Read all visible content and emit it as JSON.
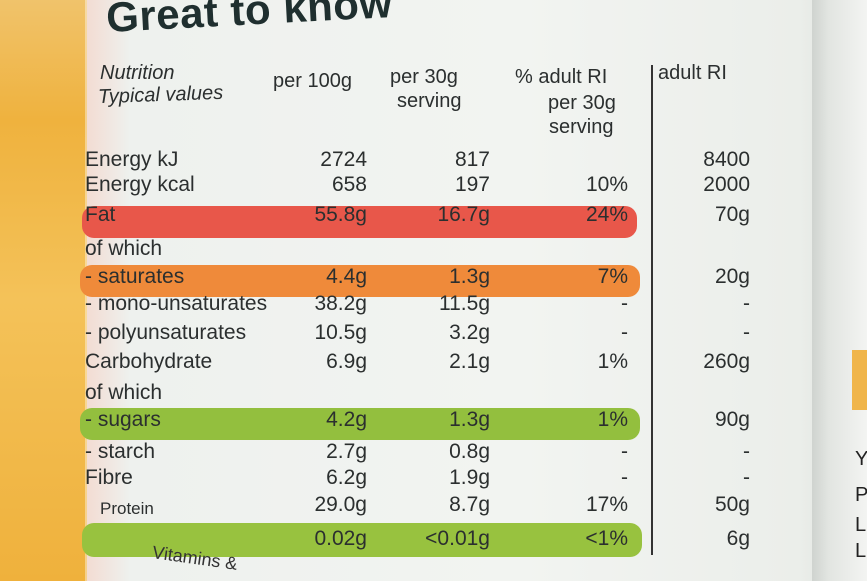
{
  "title": "Great to know",
  "headers": {
    "nutrition": [
      "Nutrition",
      "Typical values"
    ],
    "per100": "per 100g",
    "per30": [
      "per 30g",
      "serving"
    ],
    "ri_percent": [
      "% adult RI",
      "per 30g",
      "serving"
    ],
    "adult_ri": "adult RI"
  },
  "rows": [
    {
      "label": "Energy kJ",
      "per100": "2724",
      "per30": "817",
      "ri_pct": "",
      "ri": "8400"
    },
    {
      "label": "Energy kcal",
      "per100": "658",
      "per30": "197",
      "ri_pct": "10%",
      "ri": "2000"
    },
    {
      "label": "Fat",
      "per100": "55.8g",
      "per30": "16.7g",
      "ri_pct": "24%",
      "ri": "70g"
    },
    {
      "label": "of which",
      "per100": "",
      "per30": "",
      "ri_pct": "",
      "ri": ""
    },
    {
      "label": "- saturates",
      "per100": "4.4g",
      "per30": "1.3g",
      "ri_pct": "7%",
      "ri": "20g"
    },
    {
      "label": "- mono-unsaturates",
      "per100": "38.2g",
      "per30": "11.5g",
      "ri_pct": "-",
      "ri": "-"
    },
    {
      "label": "- polyunsaturates",
      "per100": "10.5g",
      "per30": "3.2g",
      "ri_pct": "-",
      "ri": "-"
    },
    {
      "label": "Carbohydrate",
      "per100": "6.9g",
      "per30": "2.1g",
      "ri_pct": "1%",
      "ri": "260g"
    },
    {
      "label": "of which",
      "per100": "",
      "per30": "",
      "ri_pct": "",
      "ri": ""
    },
    {
      "label": "- sugars",
      "per100": "4.2g",
      "per30": "1.3g",
      "ri_pct": "1%",
      "ri": "90g"
    },
    {
      "label": "- starch",
      "per100": "2.7g",
      "per30": "0.8g",
      "ri_pct": "-",
      "ri": "-"
    },
    {
      "label": "Fibre",
      "per100": "6.2g",
      "per30": "1.9g",
      "ri_pct": "-",
      "ri": "-"
    },
    {
      "label": "Protein",
      "per100": "29.0g",
      "per30": "8.7g",
      "ri_pct": "17%",
      "ri": "50g"
    },
    {
      "label": "",
      "per100": "0.02g",
      "per30": "<0.01g",
      "ri_pct": "<1%",
      "ri": "6g"
    }
  ],
  "footer": "Vitamins &",
  "right_edge_letters": [
    "Y",
    "P",
    "L",
    "L"
  ],
  "colors": {
    "fat_band": "#e8574a",
    "saturates_band": "#ef8a3a",
    "sugars_band": "#93bf3e",
    "salt_band": "#98c23f"
  }
}
